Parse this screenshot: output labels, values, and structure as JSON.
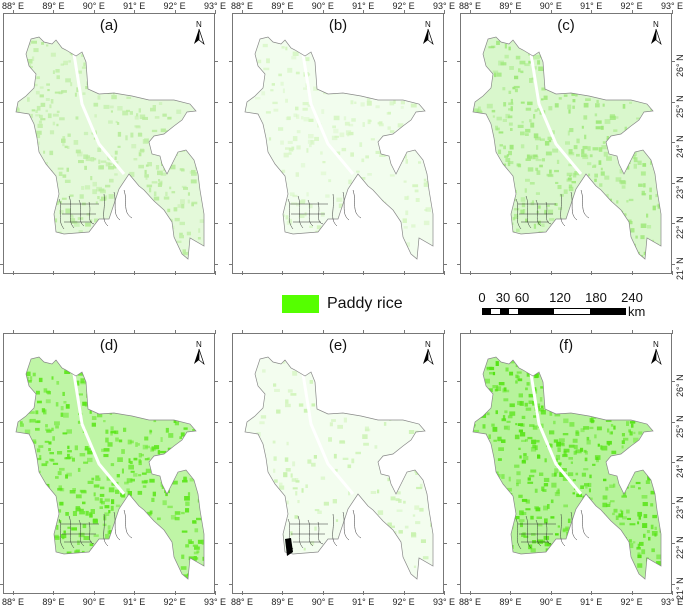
{
  "figure": {
    "panels": [
      {
        "id": "a",
        "label": "(a)",
        "fill": "#b8ec9c",
        "density": 0.75
      },
      {
        "id": "b",
        "label": "(b)",
        "fill": "#d4f5c0",
        "density": 0.45
      },
      {
        "id": "c",
        "label": "(c)",
        "fill": "#9ee87a",
        "density": 0.8
      },
      {
        "id": "d",
        "label": "(d)",
        "fill": "#5ee61e",
        "density": 0.85
      },
      {
        "id": "e",
        "label": "(e)",
        "fill": "#c9f2b0",
        "density": 0.3
      },
      {
        "id": "f",
        "label": "(f)",
        "fill": "#55e315",
        "density": 0.9
      }
    ],
    "x_ticks": [
      "88° E",
      "89° E",
      "90° E",
      "91° E",
      "92° E",
      "93° E"
    ],
    "y_ticks": [
      "26° N",
      "25° N",
      "24° N",
      "23° N",
      "22° N",
      "21° N"
    ],
    "north_arrow": {
      "label": "N"
    },
    "legend": {
      "label": "Paddy rice",
      "color": "#55ff00"
    },
    "scale_bar": {
      "labels": [
        "0",
        "30",
        "60",
        "120",
        "180",
        "240"
      ],
      "unit": "km"
    }
  }
}
